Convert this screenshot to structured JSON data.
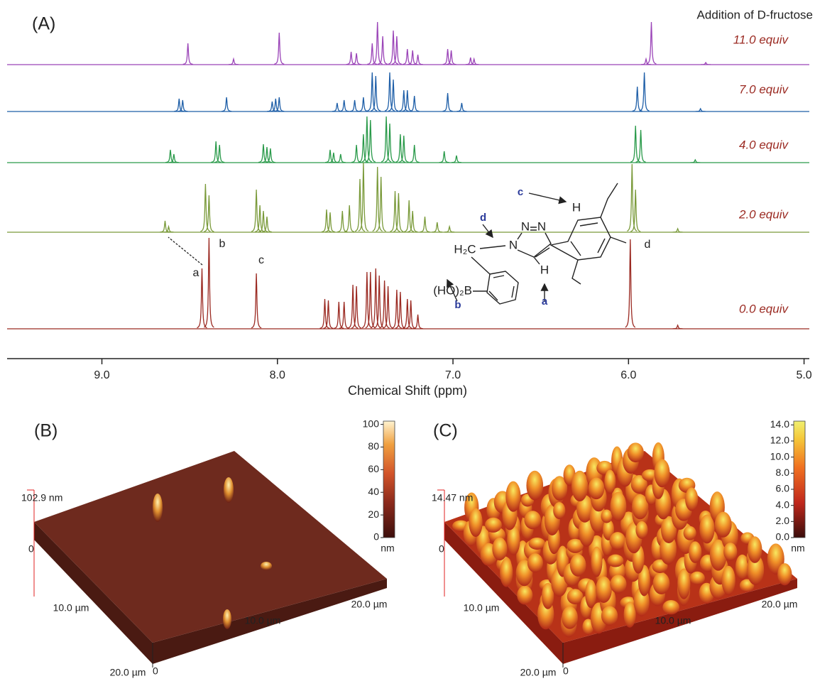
{
  "chart_data": [
    {
      "type": "spectrum",
      "panel": "(A)",
      "annotation": "Addition of D-fructose",
      "x_label": "Chemical Shift (ppm)",
      "xlim": [
        9.54,
        4.97
      ],
      "xticks": [
        {
          "value": 9,
          "label": "9.0"
        },
        {
          "value": 8,
          "label": "8.0"
        },
        {
          "value": 7,
          "label": "7.0"
        },
        {
          "value": 6,
          "label": "6.0"
        },
        {
          "value": 5,
          "label": "5.0"
        }
      ],
      "peak_labels": [
        "a",
        "b",
        "c",
        "d"
      ],
      "structure_labels": [
        "d",
        "H₂C",
        "N",
        "N",
        "N",
        "(HO)₂B",
        "b",
        "H",
        "a",
        "c",
        "H"
      ],
      "series": [
        {
          "name": "11.0 equiv",
          "color": "#9b45b8",
          "x": [
            8.51,
            8.25,
            7.99,
            7.58,
            7.55,
            7.46,
            7.43,
            7.4,
            7.34,
            7.32,
            7.26,
            7.23,
            7.2,
            7.03,
            7.01,
            6.9,
            6.88,
            5.9,
            5.87,
            5.56
          ],
          "values": [
            30,
            8,
            45,
            18,
            16,
            30,
            60,
            40,
            48,
            40,
            22,
            20,
            14,
            22,
            20,
            10,
            8,
            8,
            60,
            3
          ]
        },
        {
          "name": "7.0 equiv",
          "color": "#1f5fa8",
          "x": [
            8.56,
            8.54,
            8.29,
            8.03,
            8.01,
            7.99,
            7.66,
            7.62,
            7.56,
            7.51,
            7.46,
            7.44,
            7.36,
            7.34,
            7.28,
            7.26,
            7.22,
            7.03,
            6.95,
            5.95,
            5.91,
            5.59
          ],
          "values": [
            18,
            16,
            20,
            14,
            18,
            20,
            12,
            16,
            16,
            20,
            55,
            50,
            55,
            45,
            30,
            30,
            22,
            26,
            12,
            35,
            55,
            4
          ]
        },
        {
          "name": "4.0 equiv",
          "color": "#2a9a4a",
          "x": [
            8.61,
            8.59,
            8.35,
            8.33,
            8.08,
            8.06,
            8.04,
            7.7,
            7.68,
            7.64,
            7.55,
            7.51,
            7.49,
            7.47,
            7.38,
            7.36,
            7.3,
            7.28,
            7.22,
            7.05,
            6.98,
            5.96,
            5.93,
            5.62
          ],
          "values": [
            18,
            12,
            30,
            25,
            26,
            22,
            20,
            18,
            14,
            12,
            25,
            40,
            65,
            60,
            65,
            55,
            40,
            38,
            25,
            16,
            10,
            52,
            46,
            4
          ]
        },
        {
          "name": "2.0 equiv",
          "color": "#7a9a3a",
          "x": [
            8.64,
            8.62,
            8.41,
            8.39,
            8.12,
            8.1,
            8.08,
            8.06,
            7.72,
            7.7,
            7.63,
            7.59,
            7.53,
            7.51,
            7.43,
            7.41,
            7.33,
            7.31,
            7.25,
            7.23,
            7.16,
            7.09,
            7.02,
            5.98,
            5.96,
            5.72
          ],
          "values": [
            16,
            8,
            68,
            52,
            60,
            38,
            30,
            22,
            32,
            28,
            30,
            38,
            75,
            98,
            92,
            78,
            58,
            55,
            45,
            30,
            22,
            14,
            8,
            96,
            60,
            5
          ]
        },
        {
          "name": "0.0 equiv",
          "color": "#9b2a22",
          "x": [
            8.43,
            8.39,
            8.12,
            7.73,
            7.71,
            7.65,
            7.62,
            7.57,
            7.55,
            7.49,
            7.47,
            7.44,
            7.42,
            7.39,
            7.37,
            7.32,
            7.3,
            7.26,
            7.24,
            7.2,
            5.99,
            5.72
          ],
          "values": [
            85,
            128,
            78,
            42,
            40,
            38,
            38,
            62,
            60,
            80,
            80,
            85,
            75,
            68,
            60,
            55,
            52,
            42,
            40,
            20,
            126,
            5
          ]
        }
      ]
    },
    {
      "type": "surface",
      "panel": "(B)",
      "z_label": "102.9 nm",
      "z_origin": "0",
      "axis_labels": [
        "10.0 µm",
        "20.0 µm",
        "10.0 µm",
        "20.0 µm",
        "0"
      ],
      "colorbar": {
        "lim": [
          0,
          102.9
        ],
        "ticks": [
          0,
          20,
          40,
          60,
          80,
          100
        ],
        "unit": "nm"
      }
    },
    {
      "type": "surface",
      "panel": "(C)",
      "z_label": "14.47 nm",
      "z_origin": "0",
      "axis_labels": [
        "10.0 µm",
        "20.0 µm",
        "10.0 µm",
        "20.0 µm",
        "0"
      ],
      "colorbar": {
        "lim": [
          0,
          14.47
        ],
        "ticks": [
          {
            "value": 0,
            "label": "0.0"
          },
          {
            "value": 2,
            "label": "2.0"
          },
          {
            "value": 4,
            "label": "4.0"
          },
          {
            "value": 6,
            "label": "6.0"
          },
          {
            "value": 8,
            "label": "8.0"
          },
          {
            "value": 10,
            "label": "10.0"
          },
          {
            "value": 12,
            "label": "12.0"
          },
          {
            "value": 14,
            "label": "14.0"
          }
        ],
        "unit": "nm"
      }
    }
  ]
}
